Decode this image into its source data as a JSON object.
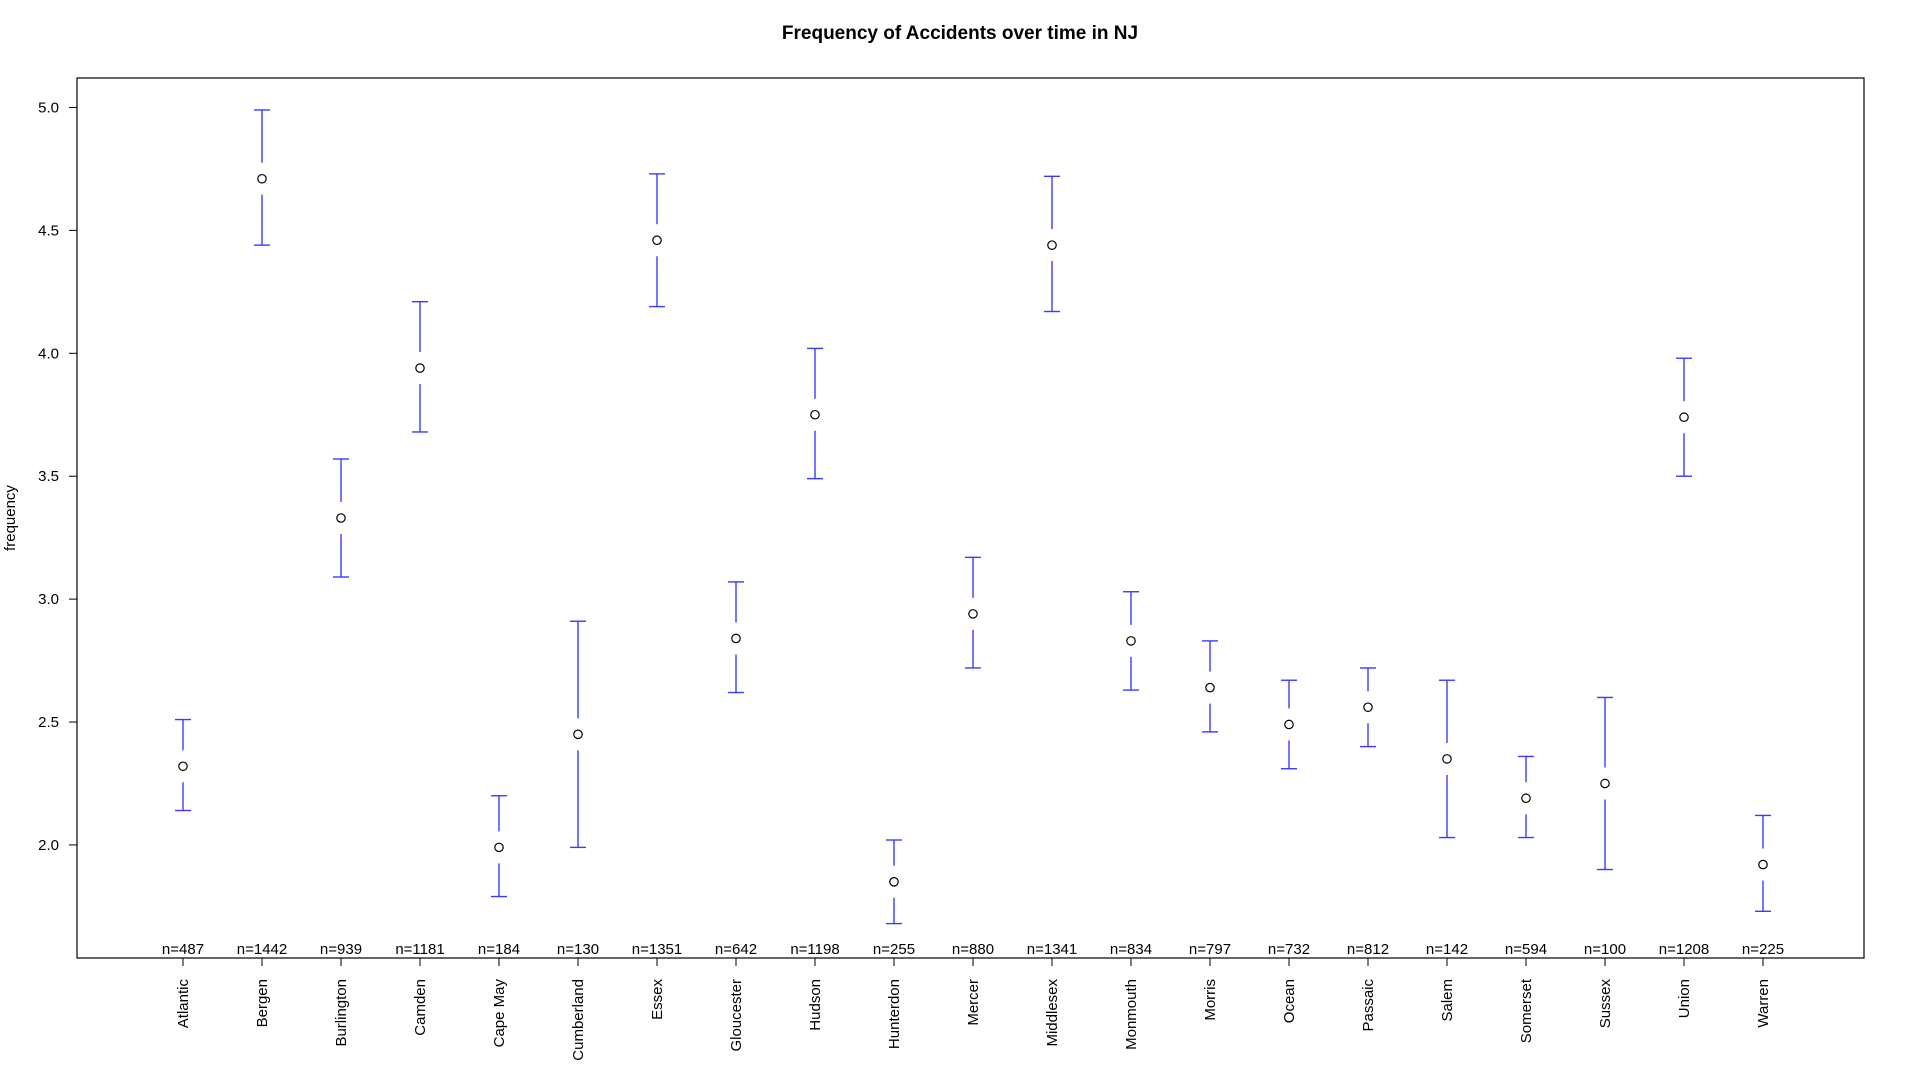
{
  "chart_data": {
    "type": "errorbar",
    "title": "Frequency of Accidents over time in NJ",
    "xlabel": "",
    "ylabel": "frequency",
    "ylim": [
      1.54,
      5.12
    ],
    "yticks": [
      "5.0",
      "4.5",
      "4.0",
      "3.5",
      "3.0",
      "2.5",
      "2.0"
    ],
    "ytick_values": [
      5.0,
      4.5,
      4.0,
      3.5,
      3.0,
      2.5,
      2.0
    ],
    "grid": false,
    "colors": {
      "errorbar": "#3b3bff",
      "point": "#000000",
      "axis": "#000000"
    },
    "categories": [
      "Atlantic",
      "Bergen",
      "Burlington",
      "Camden",
      "Cape May",
      "Cumberland",
      "Essex",
      "Gloucester",
      "Hudson",
      "Hunterdon",
      "Mercer",
      "Middlesex",
      "Monmouth",
      "Morris",
      "Ocean",
      "Passaic",
      "Salem",
      "Somerset",
      "Sussex",
      "Union",
      "Warren"
    ],
    "means": [
      2.32,
      4.71,
      3.33,
      3.94,
      1.99,
      2.45,
      4.46,
      2.84,
      3.75,
      1.85,
      2.94,
      4.44,
      2.83,
      2.64,
      2.49,
      2.56,
      2.35,
      2.19,
      2.25,
      3.74,
      1.92
    ],
    "upper": [
      2.51,
      4.99,
      3.57,
      4.21,
      2.2,
      2.91,
      4.73,
      3.07,
      4.02,
      2.02,
      3.17,
      4.72,
      3.03,
      2.83,
      2.67,
      2.72,
      2.67,
      2.36,
      2.6,
      3.98,
      2.12
    ],
    "lower": [
      2.14,
      4.44,
      3.09,
      3.68,
      1.79,
      1.99,
      4.19,
      2.62,
      3.49,
      1.68,
      2.72,
      4.17,
      2.63,
      2.46,
      2.31,
      2.4,
      2.03,
      2.03,
      1.9,
      3.5,
      1.73
    ],
    "n_labels": [
      "n=487",
      "n=1442",
      "n=939",
      "n=1181",
      "n=184",
      "n=130",
      "n=1351",
      "n=642",
      "n=1198",
      "n=255",
      "n=880",
      "n=1341",
      "n=834",
      "n=797",
      "n=732",
      "n=812",
      "n=142",
      "n=594",
      "n=100",
      "n=1208",
      "n=225"
    ]
  }
}
